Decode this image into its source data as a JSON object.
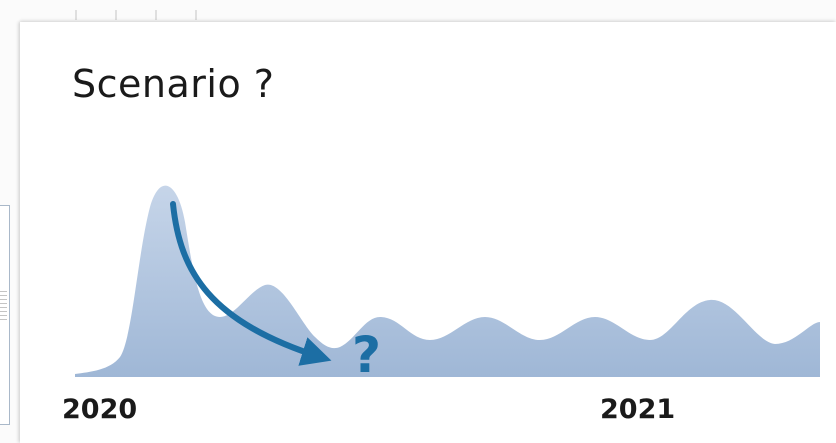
{
  "slide": {
    "title": "Scenario ?",
    "question_mark": "?",
    "year_start": "2020",
    "year_end": "2021"
  },
  "colors": {
    "wave_fill": "#b4c7e0",
    "arrow": "#1c6ea4",
    "text": "#1a1a1a"
  },
  "icons": {
    "arrow": "curved-down-arrow-icon"
  }
}
